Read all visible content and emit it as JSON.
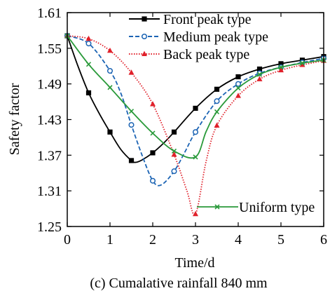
{
  "caption": "(c) Cumalative rainfall 840 mm",
  "chart_data": {
    "type": "line",
    "xlabel": "Time/d",
    "ylabel": "Safety factor",
    "xlim": [
      0,
      6
    ],
    "ylim": [
      1.25,
      1.61
    ],
    "xticks": [
      0,
      1,
      2,
      3,
      4,
      5,
      6
    ],
    "yticks": [
      1.25,
      1.31,
      1.37,
      1.43,
      1.49,
      1.55,
      1.61
    ],
    "xtick_labels": [
      "0",
      "1",
      "2",
      "3",
      "4",
      "5",
      "6"
    ],
    "ytick_labels": [
      "1.25",
      "1.31",
      "1.37",
      "1.43",
      "1.49",
      "1.55",
      "1.61"
    ],
    "grid": false,
    "legend_position": "top-right",
    "series": [
      {
        "name": "Front peak type",
        "color": "#000000",
        "marker": "square",
        "dash": "",
        "x": [
          0,
          0.5,
          1.0,
          1.5,
          2.0,
          2.5,
          3.0,
          3.5,
          4.0,
          4.5,
          5.0,
          5.5,
          6.0
        ],
        "y": [
          1.571,
          1.475,
          1.409,
          1.361,
          1.374,
          1.409,
          1.449,
          1.481,
          1.502,
          1.515,
          1.524,
          1.53,
          1.536
        ],
        "curve_x": [
          0,
          0.25,
          0.5,
          0.75,
          1.0,
          1.25,
          1.5,
          1.6,
          1.75,
          2.0,
          2.25,
          2.5,
          3.0,
          3.5,
          4.0,
          4.5,
          5.0,
          5.5,
          6.0
        ],
        "curve_y": [
          1.571,
          1.52,
          1.475,
          1.44,
          1.409,
          1.38,
          1.361,
          1.358,
          1.362,
          1.374,
          1.39,
          1.409,
          1.449,
          1.481,
          1.502,
          1.515,
          1.524,
          1.53,
          1.536
        ]
      },
      {
        "name": "Medium peak type",
        "color": "#1c64b4",
        "marker": "circle",
        "dash": "6 3",
        "x": [
          0,
          0.5,
          1.0,
          1.5,
          2.0,
          2.5,
          3.0,
          3.5,
          4.0,
          4.5,
          5.0,
          5.5,
          6.0
        ],
        "y": [
          1.571,
          1.558,
          1.512,
          1.421,
          1.327,
          1.343,
          1.409,
          1.461,
          1.49,
          1.508,
          1.518,
          1.526,
          1.533
        ],
        "curve_x": [
          0,
          0.5,
          1.0,
          1.25,
          1.5,
          1.75,
          2.0,
          2.2,
          2.5,
          2.75,
          3.0,
          3.5,
          4.0,
          4.5,
          5.0,
          5.5,
          6.0
        ],
        "curve_y": [
          1.571,
          1.558,
          1.512,
          1.475,
          1.421,
          1.37,
          1.327,
          1.32,
          1.343,
          1.375,
          1.409,
          1.461,
          1.49,
          1.508,
          1.518,
          1.526,
          1.533
        ]
      },
      {
        "name": "Back peak type",
        "color": "#e0202a",
        "marker": "triangle",
        "dash": "1.5 2",
        "x": [
          0,
          0.5,
          1.0,
          1.5,
          2.0,
          2.5,
          3.0,
          3.5,
          4.0,
          4.5,
          5.0,
          5.5,
          6.0
        ],
        "y": [
          1.571,
          1.566,
          1.546,
          1.509,
          1.456,
          1.371,
          1.271,
          1.42,
          1.47,
          1.498,
          1.513,
          1.522,
          1.529
        ],
        "curve_x": [
          0,
          0.5,
          1.0,
          1.5,
          2.0,
          2.5,
          2.8,
          3.0,
          3.25,
          3.5,
          4.0,
          4.5,
          5.0,
          5.5,
          6.0
        ],
        "curve_y": [
          1.571,
          1.566,
          1.546,
          1.509,
          1.456,
          1.371,
          1.31,
          1.271,
          1.36,
          1.42,
          1.47,
          1.498,
          1.513,
          1.522,
          1.529
        ]
      },
      {
        "name": "Uniform type",
        "color": "#2a9a3a",
        "marker": "x",
        "dash": "",
        "x": [
          0,
          0.5,
          1.0,
          1.5,
          2.0,
          2.5,
          3.0,
          3.5,
          4.0,
          4.5,
          5.0,
          5.5,
          6.0
        ],
        "y": [
          1.571,
          1.523,
          1.484,
          1.444,
          1.407,
          1.377,
          1.367,
          1.443,
          1.483,
          1.506,
          1.518,
          1.525,
          1.53
        ],
        "curve_x": [
          0,
          0.5,
          1.0,
          1.5,
          2.0,
          2.5,
          3.0,
          3.25,
          3.5,
          4.0,
          4.5,
          5.0,
          5.5,
          6.0
        ],
        "curve_y": [
          1.571,
          1.523,
          1.484,
          1.444,
          1.407,
          1.377,
          1.367,
          1.41,
          1.443,
          1.483,
          1.506,
          1.518,
          1.525,
          1.53
        ]
      }
    ]
  }
}
